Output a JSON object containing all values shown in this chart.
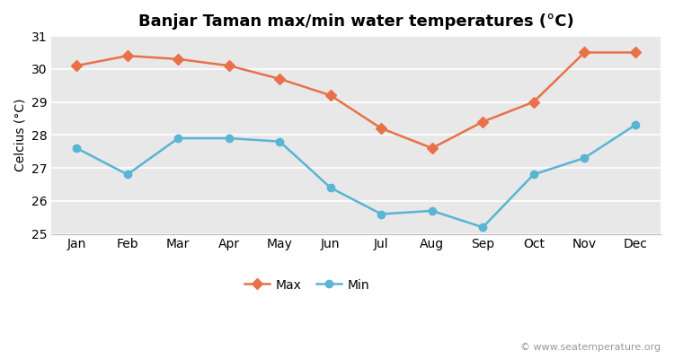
{
  "title": "Banjar Taman max/min water temperatures (°C)",
  "ylabel": "Celcius (°C)",
  "months": [
    "Jan",
    "Feb",
    "Mar",
    "Apr",
    "May",
    "Jun",
    "Jul",
    "Aug",
    "Sep",
    "Oct",
    "Nov",
    "Dec"
  ],
  "max_temps": [
    30.1,
    30.4,
    30.3,
    30.1,
    29.7,
    29.2,
    28.2,
    27.6,
    28.4,
    29.0,
    30.5,
    30.5
  ],
  "min_temps": [
    27.6,
    26.8,
    27.9,
    27.9,
    27.8,
    26.4,
    25.6,
    25.7,
    25.2,
    26.8,
    27.3,
    28.3
  ],
  "max_color": "#e8714a",
  "min_color": "#5ab4d4",
  "background_color": "#ffffff",
  "plot_bg_color": "#e8e8e8",
  "ylim": [
    25,
    31
  ],
  "yticks": [
    25,
    26,
    27,
    28,
    29,
    30,
    31
  ],
  "legend_labels": [
    "Max",
    "Min"
  ],
  "watermark": "© www.seatemperature.org",
  "title_fontsize": 13,
  "label_fontsize": 10,
  "tick_fontsize": 10,
  "watermark_fontsize": 8,
  "line_width": 1.8,
  "max_marker": "D",
  "min_marker": "o",
  "marker_size": 6
}
